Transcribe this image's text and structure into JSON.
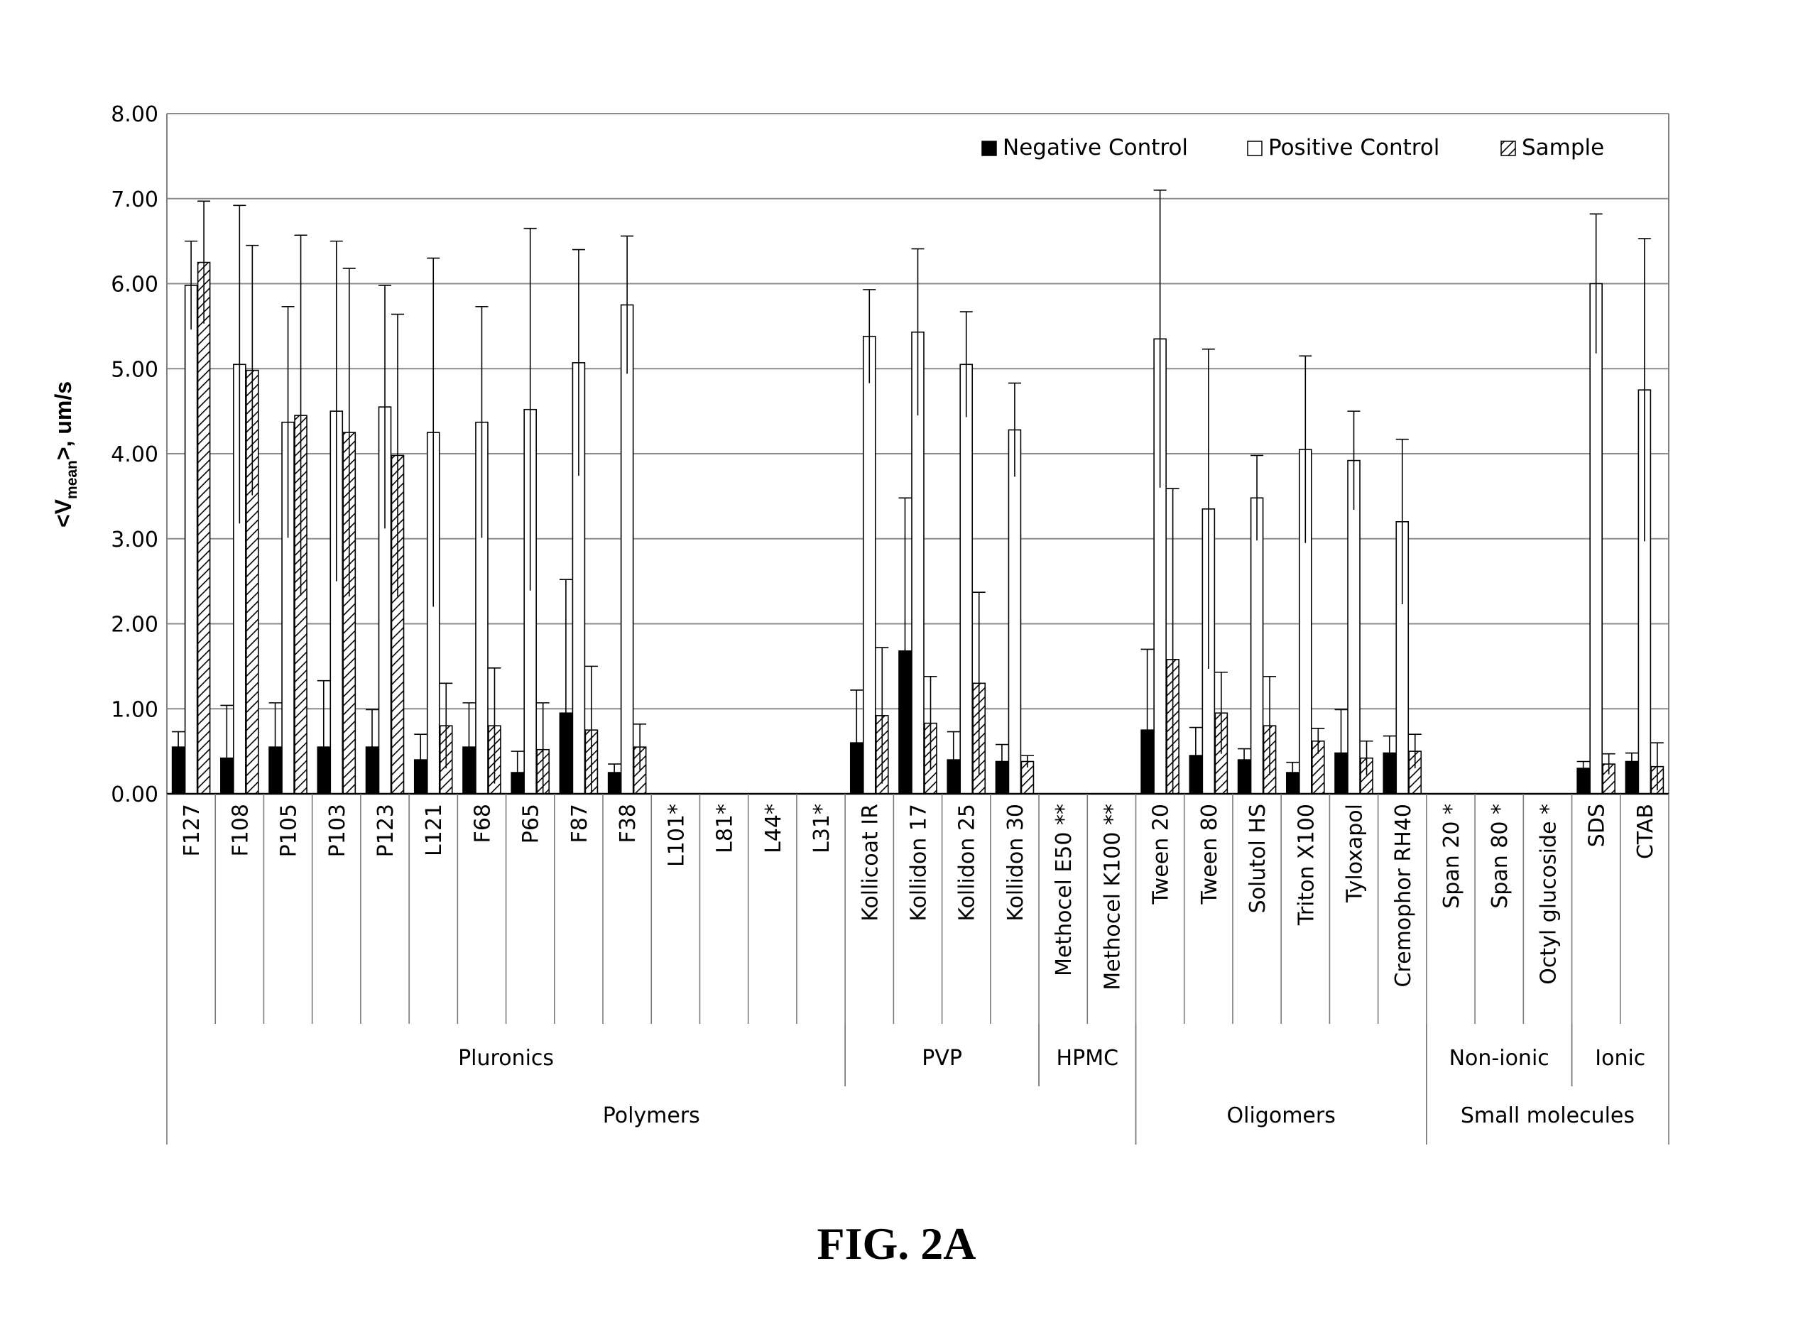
{
  "figure": {
    "caption": "FIG. 2A"
  },
  "chart_data": {
    "type": "bar",
    "title": "",
    "xlabel": "",
    "ylabel": "<Vmean>, um/s",
    "ylabel_parts": {
      "prefix": "<V",
      "subscript": "mean",
      "suffix": ">, um/s"
    },
    "ylim": [
      0,
      8
    ],
    "y_ticks": [
      "0.00",
      "1.00",
      "2.00",
      "3.00",
      "4.00",
      "5.00",
      "6.00",
      "7.00",
      "8.00"
    ],
    "grid": true,
    "legend_position": "top-right",
    "colors": {
      "negative_control": "#000000",
      "positive_control": "#ffffff",
      "sample": "hatched",
      "grid": "#8c8c8c",
      "axis": "#808080"
    },
    "categories": [
      "F127",
      "F108",
      "P105",
      "P103",
      "P123",
      "L121",
      "F68",
      "P65",
      "F87",
      "F38",
      "L101*",
      "L81*",
      "L44*",
      "L31*",
      "Kollicoat IR",
      "Kollidon 17",
      "Kollidon 25",
      "Kollidon 30",
      "Methocel E50 **",
      "Methocel K100 **",
      "Tween 20",
      "Tween 80",
      "Solutol HS",
      "Triton X100",
      "Tyloxapol",
      "Cremophor RH40",
      "Span 20 *",
      "Span 80 *",
      "Octyl glucoside *",
      "SDS",
      "CTAB"
    ],
    "series": [
      {
        "name": "Negative Control",
        "values": [
          0.55,
          0.42,
          0.55,
          0.55,
          0.55,
          0.4,
          0.55,
          0.25,
          0.95,
          0.25,
          null,
          null,
          null,
          null,
          0.6,
          1.68,
          0.4,
          0.38,
          null,
          null,
          0.75,
          0.45,
          0.4,
          0.25,
          0.48,
          0.48,
          null,
          null,
          null,
          0.3,
          0.38
        ],
        "error": [
          0.18,
          0.62,
          0.52,
          0.78,
          0.44,
          0.3,
          0.52,
          0.25,
          1.57,
          0.1,
          null,
          null,
          null,
          null,
          0.62,
          1.8,
          0.33,
          0.2,
          null,
          null,
          0.95,
          0.33,
          0.13,
          0.12,
          0.51,
          0.2,
          null,
          null,
          null,
          0.08,
          0.1
        ]
      },
      {
        "name": "Positive Control",
        "values": [
          5.98,
          5.05,
          4.37,
          4.5,
          4.55,
          4.25,
          4.37,
          4.52,
          5.07,
          5.75,
          null,
          null,
          null,
          null,
          5.38,
          5.43,
          5.05,
          4.28,
          null,
          null,
          5.35,
          3.35,
          3.48,
          4.05,
          3.92,
          3.2,
          null,
          null,
          null,
          6.0,
          4.75
        ],
        "error": [
          0.52,
          1.87,
          1.36,
          2.0,
          1.43,
          2.05,
          1.36,
          2.13,
          1.33,
          0.81,
          null,
          null,
          null,
          null,
          0.55,
          0.98,
          0.62,
          0.55,
          null,
          null,
          1.75,
          1.88,
          0.5,
          1.1,
          0.58,
          0.97,
          null,
          null,
          null,
          0.82,
          1.78
        ]
      },
      {
        "name": "Sample",
        "values": [
          6.25,
          4.98,
          4.45,
          4.25,
          3.98,
          0.8,
          0.8,
          0.52,
          0.75,
          0.55,
          null,
          null,
          null,
          null,
          0.92,
          0.83,
          1.3,
          0.38,
          null,
          null,
          1.58,
          0.95,
          0.8,
          0.62,
          0.42,
          0.5,
          null,
          null,
          null,
          0.35,
          0.32
        ],
        "error": [
          0.72,
          1.47,
          2.12,
          1.93,
          1.66,
          0.5,
          0.68,
          0.55,
          0.75,
          0.27,
          null,
          null,
          null,
          null,
          0.8,
          0.55,
          1.07,
          0.07,
          null,
          null,
          2.01,
          0.48,
          0.58,
          0.15,
          0.2,
          0.2,
          null,
          null,
          null,
          0.12,
          0.28
        ]
      }
    ],
    "groups_level1": [
      {
        "label": "Pluronics",
        "start": 0,
        "end": 13
      },
      {
        "label": "PVP",
        "start": 14,
        "end": 17
      },
      {
        "label": "HPMC",
        "start": 18,
        "end": 19
      },
      {
        "label": "",
        "start": 20,
        "end": 25
      },
      {
        "label": "Non-ionic",
        "start": 26,
        "end": 28
      },
      {
        "label": "Ionic",
        "start": 29,
        "end": 30
      }
    ],
    "groups_level2": [
      {
        "label": "Polymers",
        "start": 0,
        "end": 19
      },
      {
        "label": "Oligomers",
        "start": 20,
        "end": 25
      },
      {
        "label": "Small molecules",
        "start": 26,
        "end": 30
      }
    ]
  }
}
